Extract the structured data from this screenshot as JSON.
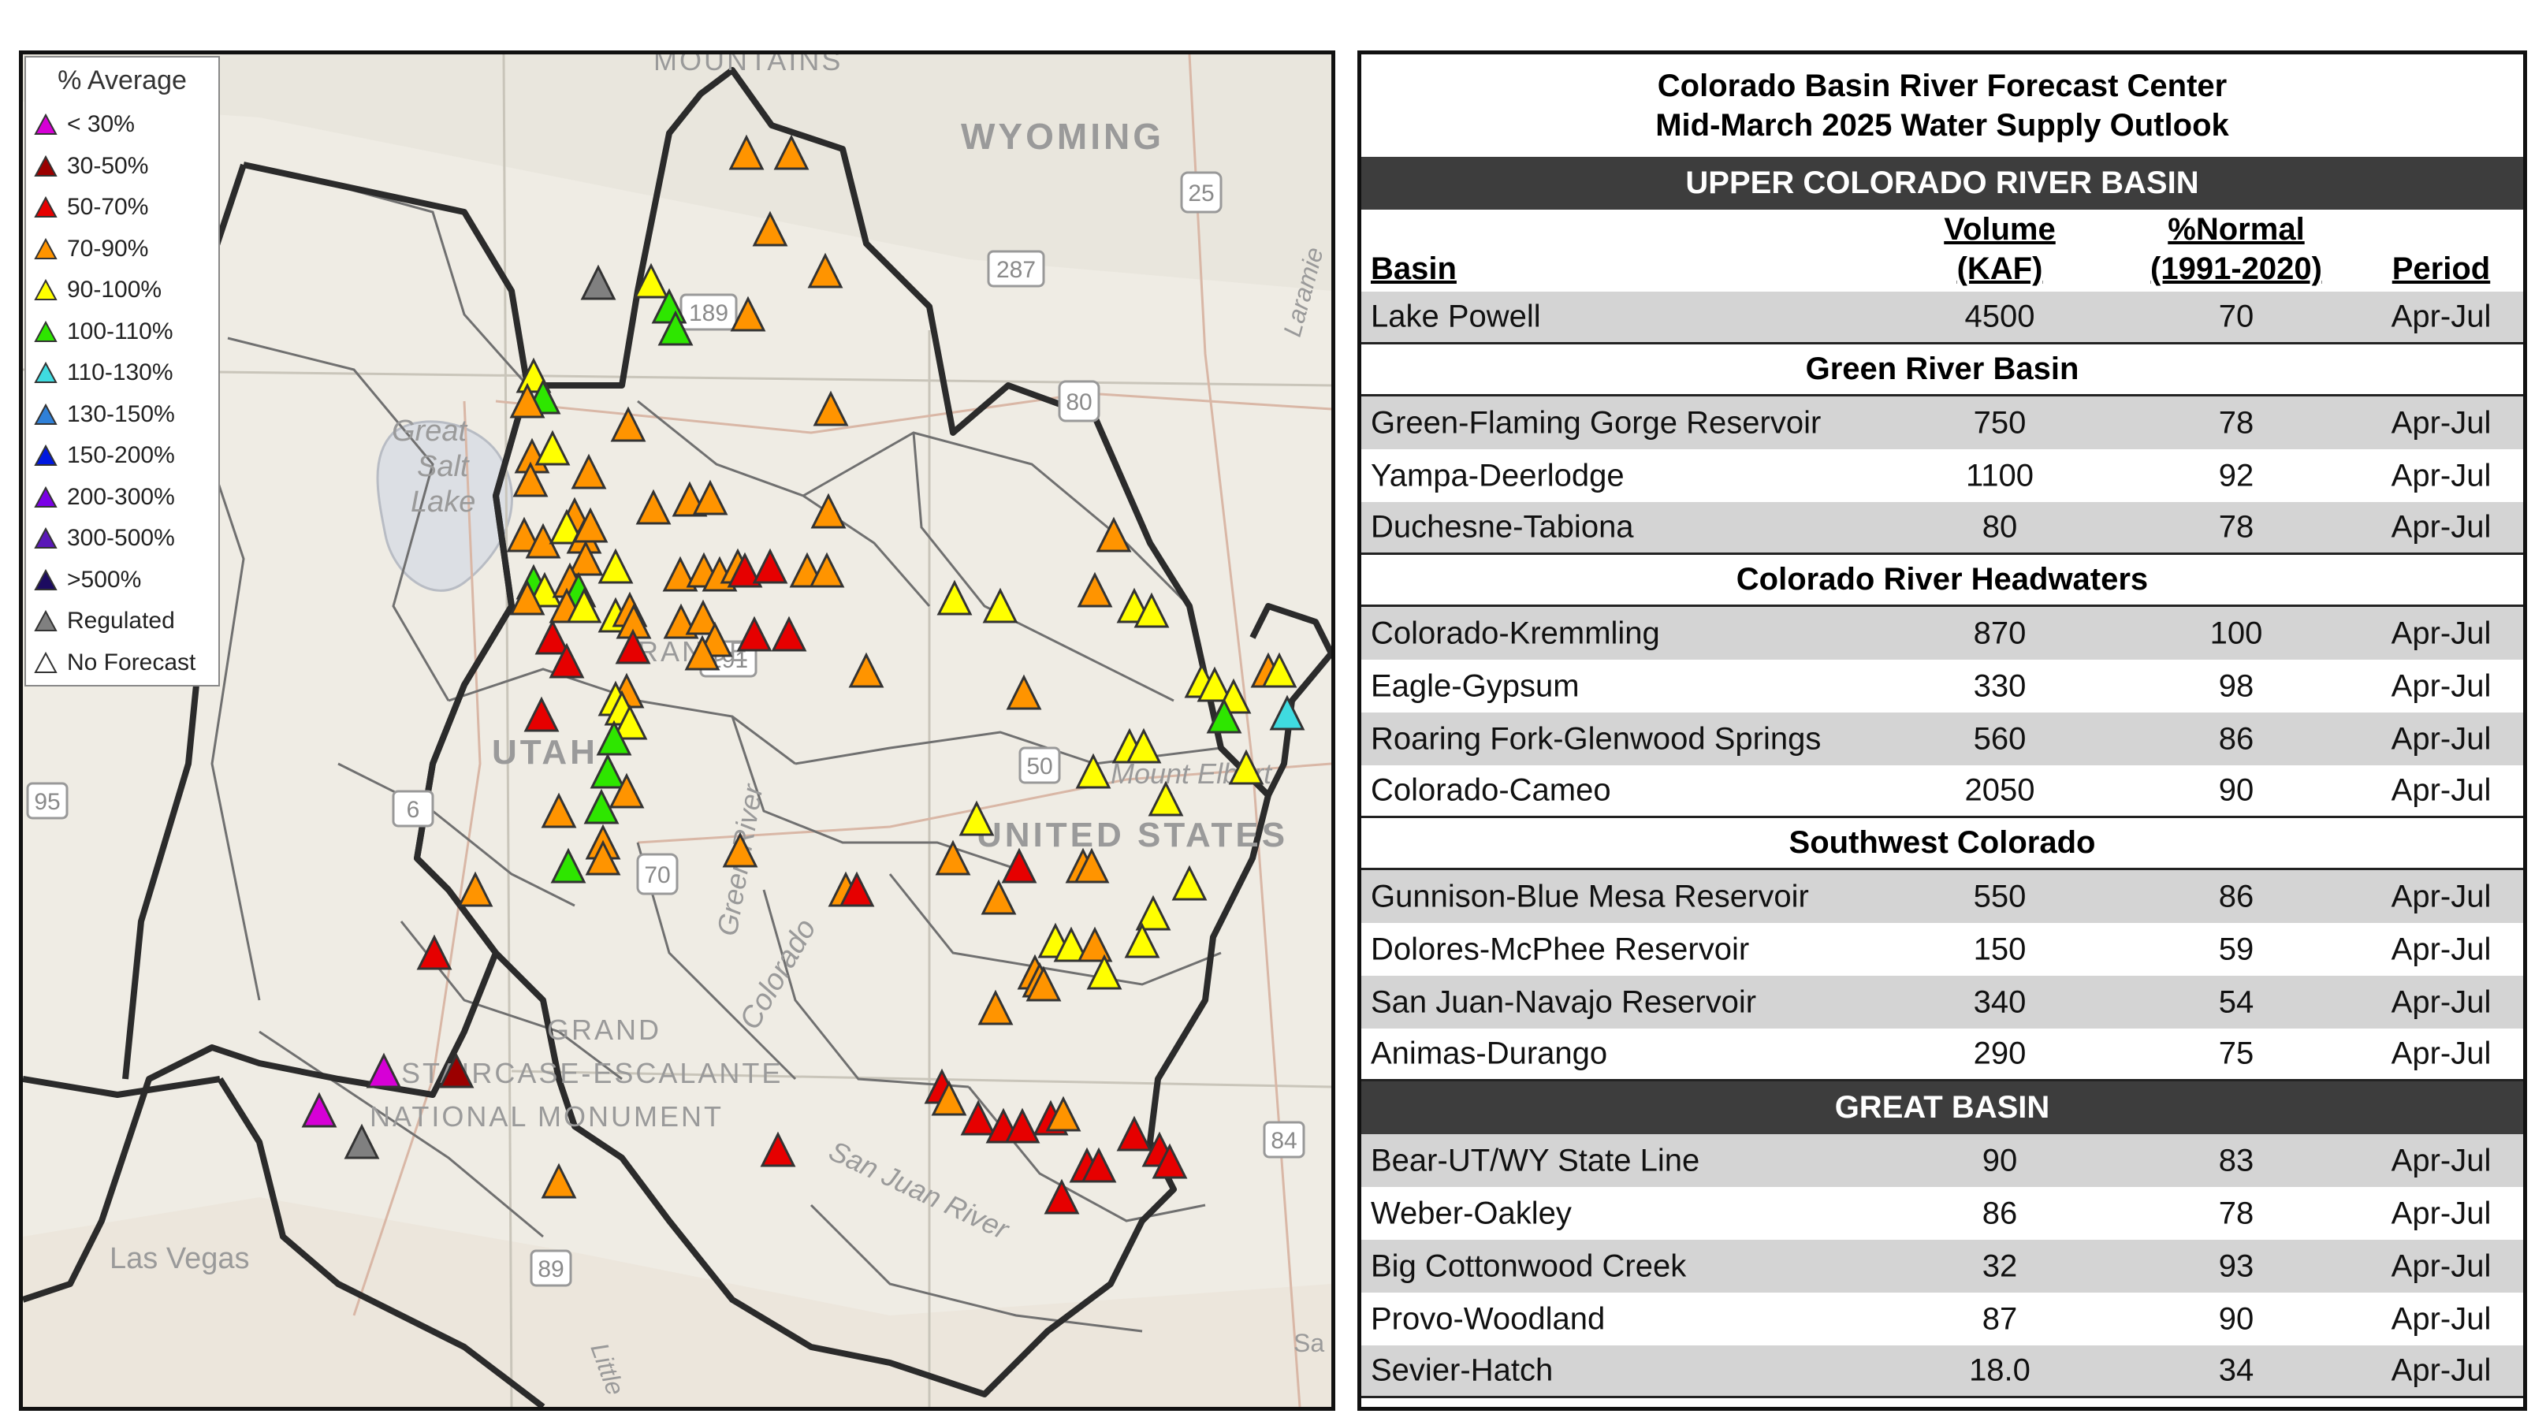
{
  "map": {
    "legend_title": "% Average",
    "legend": [
      {
        "label": "< 30%",
        "color": "#d600d6"
      },
      {
        "label": "30-50%",
        "color": "#9b0000"
      },
      {
        "label": "50-70%",
        "color": "#e60000"
      },
      {
        "label": "70-90%",
        "color": "#ff9400"
      },
      {
        "label": "90-100%",
        "color": "#ffff00"
      },
      {
        "label": "100-110%",
        "color": "#2ee600"
      },
      {
        "label": "110-130%",
        "color": "#3fdbe0"
      },
      {
        "label": "130-150%",
        "color": "#2f80d8"
      },
      {
        "label": "150-200%",
        "color": "#0018e0"
      },
      {
        "label": "200-300%",
        "color": "#7a00e6"
      },
      {
        "label": "300-500%",
        "color": "#5a18b8"
      },
      {
        "label": ">500%",
        "color": "#1c0b60"
      },
      {
        "label": "Regulated",
        "color": "#808080"
      },
      {
        "label": "No Forecast",
        "color": "#ffffff"
      }
    ],
    "labels": {
      "wyoming": "WYOMING",
      "mountains": "MOUNTAINS",
      "great_salt_lake": [
        "Great",
        "Salt",
        "Lake"
      ],
      "utah": "UTAH",
      "united_states": "UNITED STATES",
      "escalante": [
        "GRAND",
        "STAIRCASE-ESCALANTE",
        "NATIONAL MONUMENT"
      ],
      "las_vegas": "Las Vegas",
      "mount_elbert": "Mount Elbert",
      "laramie": "Laramie",
      "green_river": "Green River",
      "colorado_river": "Colorado",
      "san_juan": "San Juan River",
      "little": "Little",
      "range": "RANGE",
      "sa": "Sa"
    },
    "highways": [
      "25",
      "287",
      "80",
      "189",
      "191",
      "50",
      "6",
      "70",
      "95",
      "84",
      "89"
    ]
  },
  "table": {
    "title_line1": "Colorado Basin River Forecast Center",
    "title_line2": "Mid-March 2025 Water Supply Outlook",
    "headers": {
      "basin": "Basin",
      "volume": [
        "Volume",
        "(KAF)"
      ],
      "pct_normal": [
        "%Normal",
        "(1991-2020)"
      ],
      "period": "Period"
    },
    "upper_colorado": {
      "band": "UPPER COLORADO RIVER BASIN",
      "lake_powell": {
        "basin": "Lake Powell",
        "volume": "4500",
        "pct": "70",
        "period": "Apr-Jul"
      },
      "green_river": {
        "title": "Green River Basin",
        "rows": [
          {
            "basin": "Green-Flaming Gorge Reservoir",
            "volume": "750",
            "pct": "78",
            "period": "Apr-Jul"
          },
          {
            "basin": "Yampa-Deerlodge",
            "volume": "1100",
            "pct": "92",
            "period": "Apr-Jul"
          },
          {
            "basin": "Duchesne-Tabiona",
            "volume": "80",
            "pct": "78",
            "period": "Apr-Jul"
          }
        ]
      },
      "headwaters": {
        "title": "Colorado River Headwaters",
        "rows": [
          {
            "basin": "Colorado-Kremmling",
            "volume": "870",
            "pct": "100",
            "period": "Apr-Jul"
          },
          {
            "basin": "Eagle-Gypsum",
            "volume": "330",
            "pct": "98",
            "period": "Apr-Jul"
          },
          {
            "basin": "Roaring Fork-Glenwood Springs",
            "volume": "560",
            "pct": "86",
            "period": "Apr-Jul"
          },
          {
            "basin": "Colorado-Cameo",
            "volume": "2050",
            "pct": "90",
            "period": "Apr-Jul"
          }
        ]
      },
      "southwest": {
        "title": "Southwest Colorado",
        "rows": [
          {
            "basin": "Gunnison-Blue Mesa Reservoir",
            "volume": "550",
            "pct": "86",
            "period": "Apr-Jul"
          },
          {
            "basin": "Dolores-McPhee Reservoir",
            "volume": "150",
            "pct": "59",
            "period": "Apr-Jul"
          },
          {
            "basin": "San Juan-Navajo Reservoir",
            "volume": "340",
            "pct": "54",
            "period": "Apr-Jul"
          },
          {
            "basin": "Animas-Durango",
            "volume": "290",
            "pct": "75",
            "period": "Apr-Jul"
          }
        ]
      }
    },
    "great_basin": {
      "band": "GREAT BASIN",
      "rows": [
        {
          "basin": "Bear-UT/WY State Line",
          "volume": "90",
          "pct": "83",
          "period": "Apr-Jul"
        },
        {
          "basin": "Weber-Oakley",
          "volume": "86",
          "pct": "78",
          "period": "Apr-Jul"
        },
        {
          "basin": "Big Cottonwood Creek",
          "volume": "32",
          "pct": "93",
          "period": "Apr-Jul"
        },
        {
          "basin": "Provo-Woodland",
          "volume": "87",
          "pct": "90",
          "period": "Apr-Jul"
        },
        {
          "basin": "Sevier-Hatch",
          "volume": "18.0",
          "pct": "34",
          "period": "Apr-Jul"
        }
      ]
    }
  }
}
